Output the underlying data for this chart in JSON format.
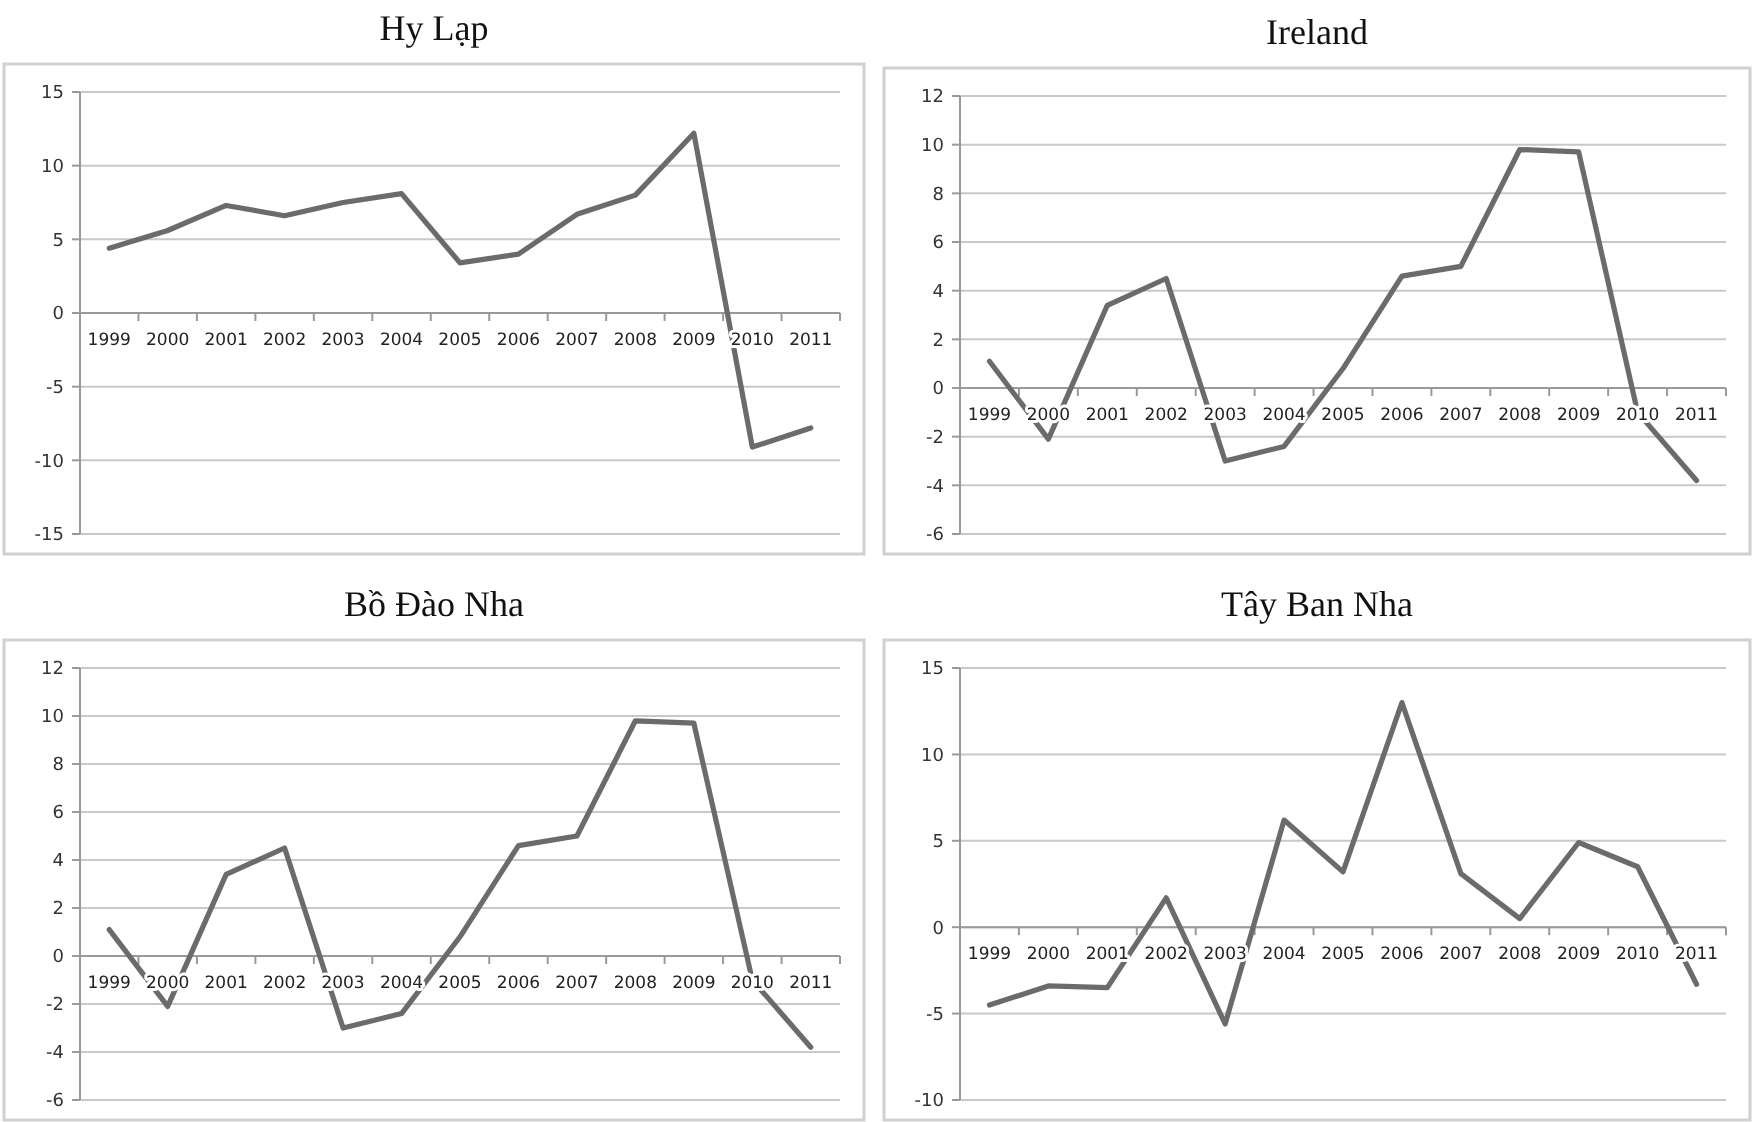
{
  "chart_data": [
    {
      "type": "line",
      "title": "Hy Lạp",
      "categories": [
        "1999",
        "2000",
        "2001",
        "2002",
        "2003",
        "2004",
        "2005",
        "2006",
        "2007",
        "2008",
        "2009",
        "2010",
        "2011"
      ],
      "series": [
        {
          "color": "#6b6b6b",
          "values": [
            4.4,
            5.6,
            7.3,
            6.6,
            7.5,
            8.1,
            3.4,
            4.0,
            6.7,
            8.0,
            12.2,
            -9.1,
            -7.8
          ]
        }
      ],
      "ylim": [
        -15,
        15
      ],
      "yticks": [
        -15,
        -10,
        -5,
        0,
        5,
        10,
        15
      ],
      "grid": "y",
      "marker": "none",
      "line_style": "solid"
    },
    {
      "type": "line",
      "title": "Ireland",
      "categories": [
        "1999",
        "2000",
        "2001",
        "2002",
        "2003",
        "2004",
        "2005",
        "2006",
        "2007",
        "2008",
        "2009",
        "2010",
        "2011"
      ],
      "series": [
        {
          "color": "#6b6b6b",
          "values": [
            1.1,
            -2.1,
            3.4,
            4.5,
            -3.0,
            -2.4,
            0.8,
            4.6,
            5.0,
            9.8,
            9.7,
            -1.0,
            -3.8
          ]
        }
      ],
      "ylim": [
        -6,
        12
      ],
      "yticks": [
        -6,
        -4,
        -2,
        0,
        2,
        4,
        6,
        8,
        10,
        12
      ],
      "grid": "y",
      "marker": "none",
      "line_style": "solid"
    },
    {
      "type": "line",
      "title": "Bồ Đào Nha",
      "categories": [
        "1999",
        "2000",
        "2001",
        "2002",
        "2003",
        "2004",
        "2005",
        "2006",
        "2007",
        "2008",
        "2009",
        "2010",
        "2011"
      ],
      "series": [
        {
          "color": "#6b6b6b",
          "values": [
            1.1,
            -2.1,
            3.4,
            4.5,
            -3.0,
            -2.4,
            0.8,
            4.6,
            5.0,
            9.8,
            9.7,
            -1.0,
            -3.8
          ]
        }
      ],
      "ylim": [
        -6,
        12
      ],
      "yticks": [
        -6,
        -4,
        -2,
        0,
        2,
        4,
        6,
        8,
        10,
        12
      ],
      "grid": "y",
      "marker": "none",
      "line_style": "solid"
    },
    {
      "type": "line",
      "title": "Tây Ban Nha",
      "categories": [
        "1999",
        "2000",
        "2001",
        "2002",
        "2003",
        "2004",
        "2005",
        "2006",
        "2007",
        "2008",
        "2009",
        "2010",
        "2011"
      ],
      "series": [
        {
          "color": "#6b6b6b",
          "values": [
            -4.5,
            -3.4,
            -3.5,
            1.7,
            -5.6,
            6.2,
            3.2,
            13.0,
            3.1,
            0.5,
            4.9,
            3.5,
            -3.3
          ]
        }
      ],
      "ylim": [
        -10,
        15
      ],
      "yticks": [
        -10,
        -5,
        0,
        5,
        10,
        15
      ],
      "grid": "y",
      "marker": "none",
      "line_style": "solid"
    }
  ]
}
